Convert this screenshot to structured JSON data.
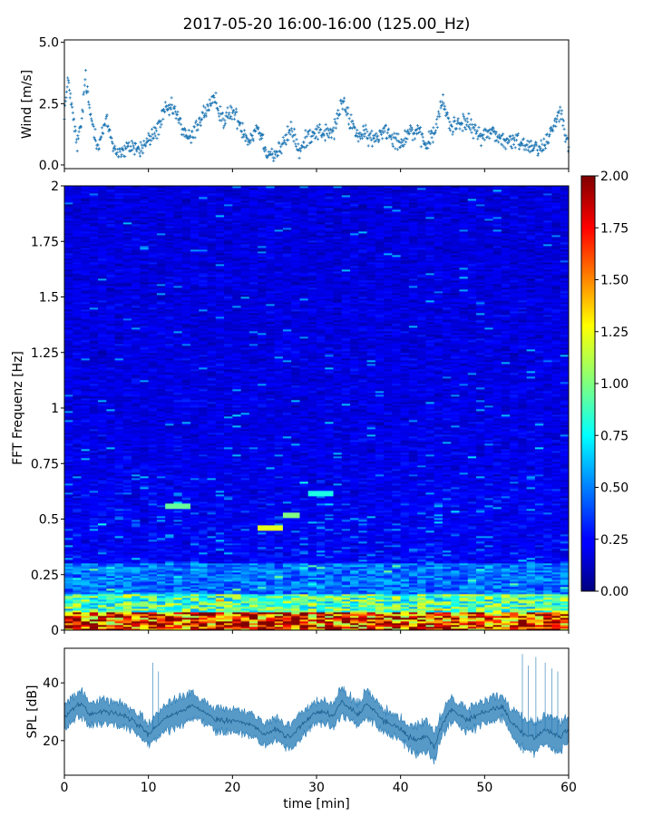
{
  "figure": {
    "title": "2017-05-20 16:00-16:00 (125.00_Hz)"
  },
  "chart_data": [
    {
      "type": "scatter",
      "panel": "wind",
      "ylabel": "Wind [m/s]",
      "xlim": [
        0,
        60
      ],
      "ylim": [
        -0.15,
        5.1
      ],
      "yticks": [
        "0.0",
        "2.5",
        "5.0"
      ],
      "yticks_values": [
        0,
        2.5,
        5
      ],
      "color": "#1f77b4",
      "marker": "plus",
      "trend_keypoints": {
        "x": [
          0,
          0.5,
          1,
          1.5,
          2,
          2.5,
          3,
          3.5,
          4,
          5,
          6,
          7,
          8,
          9,
          10,
          11,
          12,
          13,
          14,
          15,
          16,
          17,
          18,
          19,
          20,
          21,
          22,
          23,
          24,
          25,
          26,
          27,
          28,
          29,
          30,
          31,
          32,
          33,
          34,
          35,
          36,
          37,
          38,
          39,
          40,
          41,
          42,
          43,
          44,
          45,
          46,
          47,
          48,
          49,
          50,
          51,
          52,
          53,
          54,
          55,
          56,
          57,
          58,
          59,
          60
        ],
        "y": [
          2.2,
          3.5,
          2.0,
          0.8,
          1.6,
          3.6,
          2.2,
          1.5,
          0.8,
          1.8,
          0.6,
          0.5,
          0.8,
          0.6,
          1.0,
          1.4,
          2.2,
          2.3,
          1.5,
          1.0,
          1.8,
          2.3,
          2.6,
          1.8,
          2.2,
          1.6,
          1.0,
          1.6,
          0.6,
          0.4,
          0.8,
          1.5,
          0.5,
          1.2,
          1.4,
          1.3,
          1.3,
          2.6,
          1.8,
          1.2,
          1.2,
          1.0,
          1.5,
          1.2,
          0.9,
          1.4,
          1.3,
          0.8,
          1.3,
          2.6,
          1.5,
          1.8,
          1.7,
          1.3,
          1.2,
          1.4,
          1.0,
          0.9,
          1.0,
          0.8,
          0.8,
          0.7,
          1.5,
          2.2,
          0.9
        ]
      }
    },
    {
      "type": "heatmap",
      "panel": "spectrogram",
      "ylabel": "FFT Frequenz [Hz]",
      "xlim": [
        0,
        60
      ],
      "ylim": [
        0,
        2
      ],
      "yticks": [
        "0",
        "0.25",
        "0.5",
        "0.75",
        "1",
        "1.25",
        "1.5",
        "1.75",
        "2"
      ],
      "yticks_values": [
        0,
        0.25,
        0.5,
        0.75,
        1,
        1.25,
        1.5,
        1.75,
        2
      ],
      "colormap": "jet",
      "colorbar": {
        "range": [
          0,
          2
        ],
        "ticks": [
          "0.00",
          "0.25",
          "0.50",
          "0.75",
          "1.00",
          "1.25",
          "1.50",
          "1.75",
          "2.00"
        ],
        "ticks_values": [
          0,
          0.25,
          0.5,
          0.75,
          1,
          1.25,
          1.5,
          1.75,
          2
        ]
      },
      "features": [
        {
          "x": [
            12,
            15
          ],
          "y": 0.56,
          "value": 0.95
        },
        {
          "x": [
            23,
            26
          ],
          "y": 0.465,
          "value": 1.2
        },
        {
          "x": [
            26,
            28
          ],
          "y": 0.52,
          "value": 1.0
        },
        {
          "x": [
            29,
            32
          ],
          "y": 0.62,
          "value": 0.8
        }
      ]
    },
    {
      "type": "area",
      "panel": "spl",
      "ylabel": "SPL [dB]",
      "xlabel": "time [min]",
      "xlim": [
        0,
        60
      ],
      "ylim": [
        8,
        52
      ],
      "yticks": [
        "20",
        "40"
      ],
      "yticks_values": [
        20,
        40
      ],
      "xticks": [
        "0",
        "10",
        "20",
        "30",
        "40",
        "50",
        "60"
      ],
      "xticks_values": [
        0,
        10,
        20,
        30,
        40,
        50,
        60
      ],
      "color": "#1f77b4",
      "envelope_keypoints": {
        "x": [
          0,
          1,
          2,
          3,
          5,
          7,
          8,
          9,
          10,
          12,
          14,
          15,
          16,
          18,
          20,
          22,
          24,
          25,
          27,
          28,
          30,
          32,
          33,
          34,
          35,
          36,
          37,
          38,
          40,
          41,
          42,
          43,
          44,
          45,
          46,
          47,
          48,
          50,
          51,
          52,
          53,
          54,
          55,
          56,
          57,
          58,
          59,
          60
        ],
        "mid": [
          28,
          31,
          33,
          29,
          30,
          29,
          27,
          25,
          22,
          28,
          30,
          32,
          31,
          27,
          27,
          26,
          22,
          24,
          21,
          25,
          30,
          29,
          34,
          31,
          29,
          33,
          30,
          27,
          24,
          21,
          20,
          22,
          18,
          26,
          31,
          29,
          27,
          30,
          31,
          32,
          27,
          24,
          22,
          21,
          24,
          23,
          21,
          24
        ],
        "half": [
          4,
          4,
          5,
          4,
          4,
          4,
          4,
          4,
          4,
          5,
          5,
          5,
          4,
          4,
          4,
          4,
          4,
          4,
          4,
          4,
          4,
          4,
          5,
          4,
          4,
          5,
          4,
          4,
          4,
          4,
          5,
          5,
          5,
          4,
          4,
          4,
          4,
          4,
          4,
          4,
          4,
          5,
          5,
          5,
          5,
          5,
          5,
          4
        ]
      }
    }
  ]
}
